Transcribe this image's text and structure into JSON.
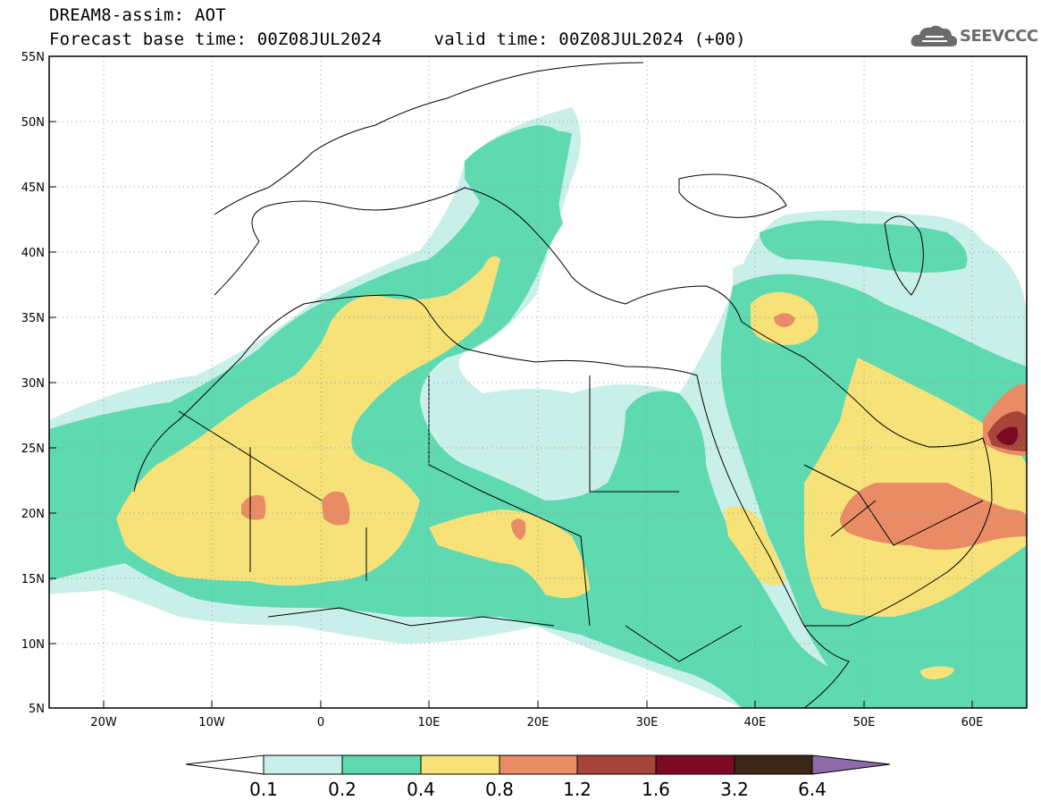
{
  "header": {
    "title": "DREAM8-assim: AOT",
    "forecast_line": "Forecast base time: 00Z08JUL2024     valid time: 00Z08JUL2024 (+00)"
  },
  "logo": {
    "text": "SEEVCCC",
    "icon": "cloud-icon"
  },
  "map": {
    "projection": "lat-lon",
    "lon_range": [
      -25,
      65
    ],
    "lat_range": [
      5,
      55
    ],
    "lat_labels": [
      "55N",
      "50N",
      "45N",
      "40N",
      "35N",
      "30N",
      "25N",
      "20N",
      "15N",
      "10N",
      "5N"
    ],
    "lon_labels": [
      "20W",
      "10W",
      "0",
      "10E",
      "20E",
      "30E",
      "40E",
      "50E",
      "60E"
    ],
    "gridlines": "dotted",
    "field": "Aerosol Optical Thickness"
  },
  "colorbar": {
    "levels": [
      "0.1",
      "0.2",
      "0.4",
      "0.8",
      "1.2",
      "1.6",
      "3.2",
      "6.4"
    ],
    "colors": [
      "#ffffff",
      "#c9efe9",
      "#5fd9b0",
      "#f7e27a",
      "#e98c65",
      "#a8453a",
      "#7c0a24",
      "#3a2718",
      "#8e6aa8"
    ]
  }
}
